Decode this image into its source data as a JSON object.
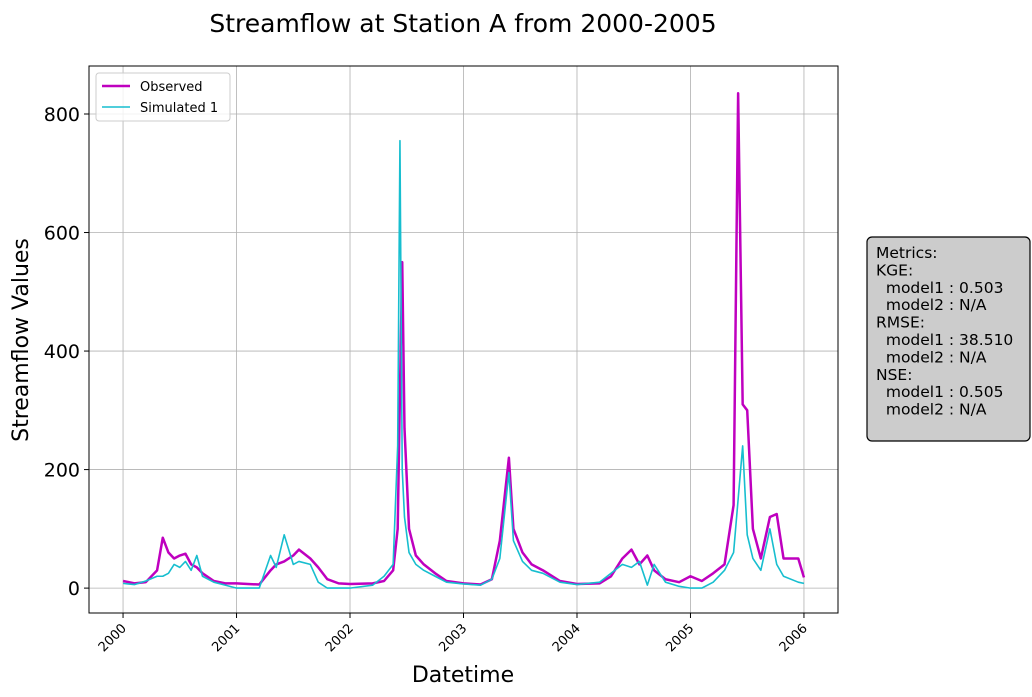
{
  "chart_data": {
    "type": "line",
    "title": "Streamflow at Station A from 2000-2005",
    "x_label": "Datetime",
    "y_label": "Streamflow Values",
    "x": [
      2000.0,
      2000.1,
      2000.2,
      2000.3,
      2000.35,
      2000.4,
      2000.45,
      2000.5,
      2000.55,
      2000.6,
      2000.65,
      2000.7,
      2000.8,
      2000.9,
      2001.0,
      2001.1,
      2001.2,
      2001.3,
      2001.35,
      2001.42,
      2001.5,
      2001.55,
      2001.65,
      2001.72,
      2001.8,
      2001.9,
      2002.0,
      2002.2,
      2002.3,
      2002.38,
      2002.42,
      2002.44,
      2002.46,
      2002.48,
      2002.52,
      2002.58,
      2002.65,
      2002.75,
      2002.85,
      2003.0,
      2003.15,
      2003.25,
      2003.32,
      2003.4,
      2003.44,
      2003.52,
      2003.6,
      2003.7,
      2003.85,
      2004.0,
      2004.2,
      2004.3,
      2004.4,
      2004.48,
      2004.55,
      2004.62,
      2004.68,
      2004.78,
      2004.9,
      2005.0,
      2005.1,
      2005.2,
      2005.3,
      2005.38,
      2005.42,
      2005.46,
      2005.5,
      2005.55,
      2005.62,
      2005.7,
      2005.76,
      2005.82,
      2005.95,
      2006.0
    ],
    "series": [
      {
        "name": "Observed",
        "color": "#bf00bf",
        "values": [
          12,
          8,
          10,
          30,
          85,
          60,
          50,
          55,
          58,
          40,
          35,
          25,
          12,
          8,
          8,
          7,
          6,
          30,
          40,
          45,
          55,
          65,
          50,
          35,
          15,
          8,
          7,
          8,
          12,
          30,
          100,
          330,
          550,
          270,
          100,
          55,
          40,
          25,
          12,
          8,
          6,
          15,
          80,
          220,
          100,
          60,
          40,
          30,
          12,
          7,
          8,
          20,
          50,
          65,
          40,
          55,
          30,
          15,
          10,
          20,
          12,
          25,
          40,
          140,
          835,
          310,
          300,
          100,
          50,
          120,
          125,
          50,
          50,
          18
        ]
      },
      {
        "name": "Simulated 1",
        "color": "#17becf",
        "values": [
          8,
          6,
          12,
          20,
          20,
          25,
          40,
          35,
          45,
          30,
          55,
          20,
          10,
          5,
          0,
          0,
          0,
          55,
          35,
          90,
          40,
          45,
          40,
          10,
          0,
          0,
          0,
          5,
          20,
          40,
          240,
          755,
          200,
          120,
          60,
          40,
          30,
          20,
          10,
          7,
          5,
          15,
          50,
          195,
          80,
          45,
          30,
          25,
          10,
          6,
          10,
          25,
          40,
          35,
          45,
          5,
          40,
          10,
          3,
          0,
          0,
          10,
          30,
          60,
          150,
          240,
          90,
          50,
          30,
          100,
          40,
          20,
          10,
          8
        ]
      }
    ],
    "xlim": [
      1999.7,
      2006.3
    ],
    "xticks": [
      2000,
      2001,
      2002,
      2003,
      2004,
      2005,
      2006
    ],
    "ylim": [
      -42,
      881
    ],
    "yticks": [
      0,
      200,
      400,
      600,
      800
    ],
    "grid": true,
    "legend": "upper left",
    "annotation_lines": [
      "Metrics:",
      "KGE:",
      "  model1 : 0.503",
      "  model2 : N/A",
      "RMSE:",
      "  model1 : 38.510",
      "  model2 : N/A",
      "NSE:",
      "  model1 : 0.505",
      "  model2 : N/A"
    ]
  }
}
